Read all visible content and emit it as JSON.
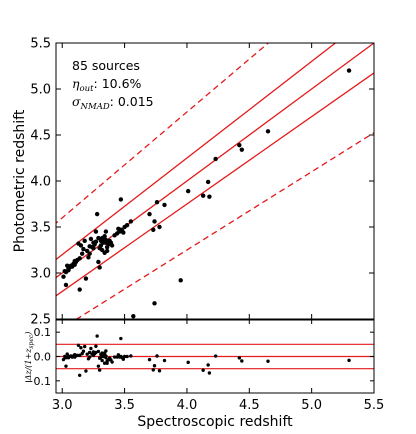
{
  "chart_data": {
    "type": "scatter",
    "main": {
      "xlabel": "",
      "ylabel": "Photometric redshift",
      "xlim": [
        2.95,
        5.5
      ],
      "ylim": [
        2.5,
        5.5
      ],
      "xticks": [
        "3.0",
        "3.5",
        "4.0",
        "4.5",
        "5.0",
        "5.5"
      ],
      "yticks": [
        "2.5",
        "3.0",
        "3.5",
        "4.0",
        "4.5",
        "5.0",
        "5.5"
      ],
      "annotation": {
        "count_text": "85 sources",
        "eta_symbol": "η",
        "eta_sub": "out",
        "eta_value": ": 10.6%",
        "sigma_symbol": "σ",
        "sigma_sub": "NMAD",
        "sigma_value": ": 0.015"
      },
      "solid_line_color": "#e41a1c",
      "dashed_line_color": "#e41a1c",
      "point_color": "#000000",
      "points": [
        [
          3.01,
          2.96
        ],
        [
          3.02,
          3.02
        ],
        [
          3.03,
          3.01
        ],
        [
          3.03,
          2.87
        ],
        [
          3.05,
          3.05
        ],
        [
          3.05,
          3.03
        ],
        [
          3.06,
          3.06
        ],
        [
          3.07,
          3.08
        ],
        [
          3.08,
          3.07
        ],
        [
          3.09,
          3.1
        ],
        [
          3.1,
          3.13
        ],
        [
          3.11,
          3.12
        ],
        [
          3.12,
          3.14
        ],
        [
          3.13,
          3.32
        ],
        [
          3.14,
          2.82
        ],
        [
          3.15,
          3.3
        ],
        [
          3.16,
          3.21
        ],
        [
          3.17,
          3.26
        ],
        [
          3.18,
          3.35
        ],
        [
          3.19,
          2.94
        ],
        [
          3.2,
          3.24
        ],
        [
          3.21,
          3.17
        ],
        [
          3.22,
          3.29
        ],
        [
          3.23,
          3.37
        ],
        [
          3.24,
          3.28
        ],
        [
          3.25,
          3.33
        ],
        [
          3.26,
          3.31
        ],
        [
          3.27,
          3.45
        ],
        [
          3.27,
          3.34
        ],
        [
          3.28,
          3.64
        ],
        [
          3.29,
          3.12
        ],
        [
          3.29,
          3.38
        ],
        [
          3.3,
          3.06
        ],
        [
          3.3,
          3.27
        ],
        [
          3.31,
          3.35
        ],
        [
          3.31,
          3.3
        ],
        [
          3.32,
          3.38
        ],
        [
          3.32,
          3.25
        ],
        [
          3.33,
          3.37
        ],
        [
          3.33,
          3.33
        ],
        [
          3.34,
          3.22
        ],
        [
          3.34,
          3.4
        ],
        [
          3.35,
          3.33
        ],
        [
          3.35,
          3.36
        ],
        [
          3.36,
          3.24
        ],
        [
          3.36,
          3.28
        ],
        [
          3.37,
          3.31
        ],
        [
          3.38,
          3.35
        ],
        [
          3.39,
          3.33
        ],
        [
          3.4,
          3.3
        ],
        [
          3.42,
          3.41
        ],
        [
          3.44,
          3.43
        ],
        [
          3.45,
          3.48
        ],
        [
          3.46,
          3.45
        ],
        [
          3.47,
          3.47
        ],
        [
          3.47,
          3.8
        ],
        [
          3.48,
          3.46
        ],
        [
          3.49,
          3.44
        ],
        [
          3.5,
          3.5
        ],
        [
          3.52,
          3.52
        ],
        [
          3.55,
          3.56
        ],
        [
          3.57,
          2.53
        ],
        [
          3.7,
          3.64
        ],
        [
          3.73,
          3.47
        ],
        [
          3.74,
          3.56
        ],
        [
          3.74,
          2.67
        ],
        [
          3.76,
          3.77
        ],
        [
          3.78,
          3.5
        ],
        [
          3.82,
          3.74
        ],
        [
          3.95,
          2.92
        ],
        [
          4.01,
          3.89
        ],
        [
          4.13,
          3.84
        ],
        [
          4.17,
          3.99
        ],
        [
          4.18,
          3.83
        ],
        [
          4.23,
          4.24
        ],
        [
          4.42,
          4.39
        ],
        [
          4.44,
          4.34
        ],
        [
          4.65,
          4.54
        ],
        [
          5.3,
          5.2
        ],
        [
          3.04,
          3.08
        ],
        [
          3.1,
          3.09
        ],
        [
          3.22,
          3.21
        ],
        [
          3.14,
          3.16
        ],
        [
          3.25,
          3.27
        ],
        [
          3.35,
          3.45
        ]
      ],
      "solid_lines_label": "",
      "dashed_lines_label": ""
    },
    "residual": {
      "xlabel": "Spectroscopic redshift",
      "ylabel_main": "Δz/(1+z",
      "ylabel_sub": "spec",
      "ylabel_end": ")",
      "ylim": [
        -0.15,
        0.15
      ],
      "yticks": [
        "0.1",
        "0.0",
        "−0.1"
      ],
      "lines": [
        0.05,
        0.0,
        -0.05
      ]
    }
  }
}
